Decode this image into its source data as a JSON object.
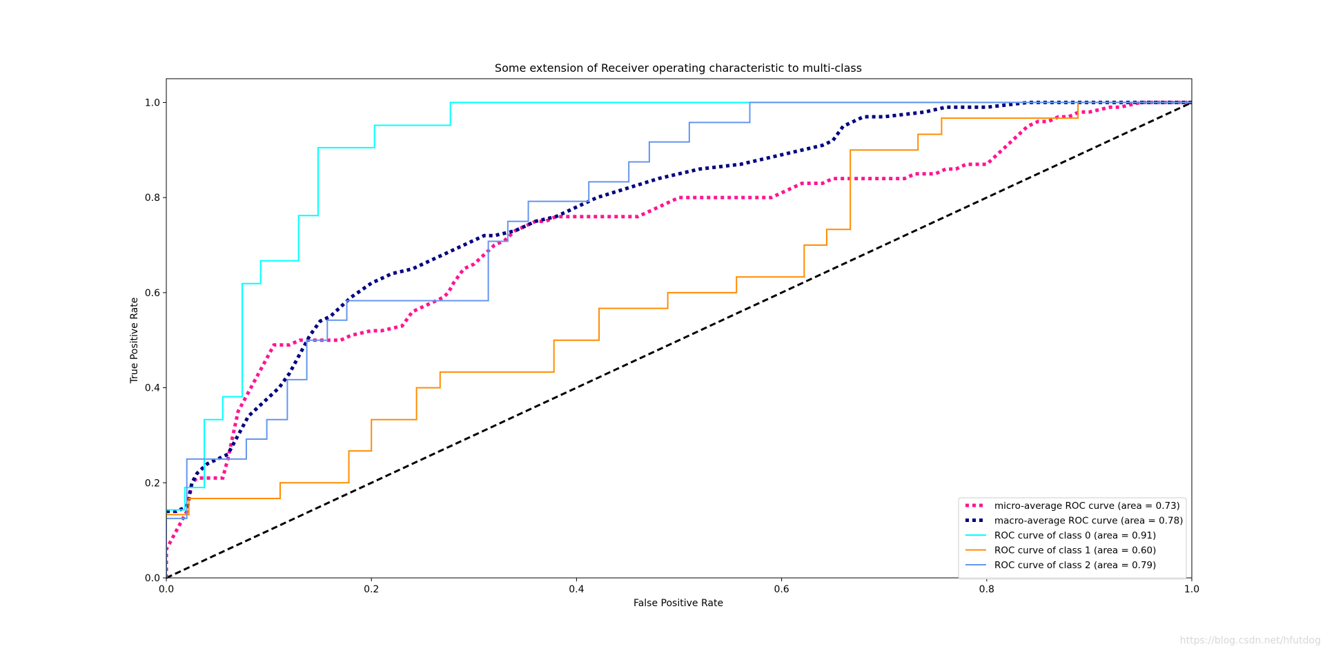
{
  "chart_data": {
    "type": "line",
    "title": "Some extension of Receiver operating characteristic to multi-class",
    "xlabel": "False Positive Rate",
    "ylabel": "True Positive Rate",
    "xlim": [
      0.0,
      1.0
    ],
    "ylim": [
      0.0,
      1.05
    ],
    "xticks": [
      0.0,
      0.2,
      0.4,
      0.6,
      0.8,
      1.0
    ],
    "xtick_labels": [
      "0.0",
      "0.2",
      "0.4",
      "0.6",
      "0.8",
      "1.0"
    ],
    "yticks": [
      0.0,
      0.2,
      0.4,
      0.6,
      0.8,
      1.0
    ],
    "ytick_labels": [
      "0.0",
      "0.2",
      "0.4",
      "0.6",
      "0.8",
      "1.0"
    ],
    "grid": false,
    "legend_position": "lower-right",
    "series": [
      {
        "name": "micro-average ROC curve (area = 0.73)",
        "color": "#ff1493",
        "style": "dotted-thick",
        "step": false,
        "x": [
          0.0,
          0.0,
          0.005,
          0.01,
          0.015,
          0.02,
          0.025,
          0.03,
          0.04,
          0.045,
          0.055,
          0.06,
          0.065,
          0.07,
          0.075,
          0.08,
          0.085,
          0.09,
          0.095,
          0.1,
          0.105,
          0.11,
          0.115,
          0.12,
          0.13,
          0.15,
          0.17,
          0.18,
          0.2,
          0.21,
          0.23,
          0.24,
          0.25,
          0.26,
          0.27,
          0.275,
          0.28,
          0.29,
          0.3,
          0.31,
          0.32,
          0.33,
          0.34,
          0.35,
          0.36,
          0.37,
          0.38,
          0.39,
          0.4,
          0.45,
          0.46,
          0.48,
          0.49,
          0.5,
          0.55,
          0.58,
          0.59,
          0.6,
          0.62,
          0.64,
          0.65,
          0.7,
          0.72,
          0.73,
          0.75,
          0.76,
          0.77,
          0.78,
          0.79,
          0.8,
          0.81,
          0.82,
          0.83,
          0.84,
          0.85,
          0.86,
          0.87,
          0.88,
          0.89,
          0.9,
          0.92,
          0.93,
          0.95,
          0.97,
          1.0
        ],
        "y": [
          0.0,
          0.06,
          0.08,
          0.1,
          0.12,
          0.14,
          0.2,
          0.21,
          0.21,
          0.21,
          0.21,
          0.25,
          0.3,
          0.35,
          0.37,
          0.39,
          0.41,
          0.43,
          0.45,
          0.47,
          0.49,
          0.49,
          0.49,
          0.49,
          0.5,
          0.5,
          0.5,
          0.51,
          0.52,
          0.52,
          0.53,
          0.56,
          0.57,
          0.58,
          0.59,
          0.6,
          0.62,
          0.65,
          0.66,
          0.68,
          0.7,
          0.71,
          0.73,
          0.74,
          0.75,
          0.75,
          0.76,
          0.76,
          0.76,
          0.76,
          0.76,
          0.78,
          0.79,
          0.8,
          0.8,
          0.8,
          0.8,
          0.81,
          0.83,
          0.83,
          0.84,
          0.84,
          0.84,
          0.85,
          0.85,
          0.86,
          0.86,
          0.87,
          0.87,
          0.87,
          0.89,
          0.91,
          0.93,
          0.95,
          0.96,
          0.96,
          0.97,
          0.97,
          0.98,
          0.98,
          0.99,
          0.99,
          1.0,
          1.0,
          1.0
        ]
      },
      {
        "name": "macro-average ROC curve (area = 0.78)",
        "color": "#000080",
        "style": "dotted-thick",
        "step": false,
        "x": [
          0.0,
          0.01,
          0.02,
          0.025,
          0.03,
          0.04,
          0.05,
          0.06,
          0.065,
          0.07,
          0.08,
          0.09,
          0.1,
          0.11,
          0.12,
          0.13,
          0.14,
          0.15,
          0.16,
          0.17,
          0.18,
          0.2,
          0.22,
          0.24,
          0.26,
          0.28,
          0.3,
          0.31,
          0.32,
          0.34,
          0.36,
          0.38,
          0.4,
          0.42,
          0.45,
          0.48,
          0.5,
          0.52,
          0.56,
          0.58,
          0.6,
          0.62,
          0.64,
          0.65,
          0.66,
          0.67,
          0.68,
          0.7,
          0.74,
          0.76,
          0.78,
          0.8,
          0.84,
          0.88,
          0.9,
          0.95,
          1.0
        ],
        "y": [
          0.14,
          0.14,
          0.15,
          0.2,
          0.22,
          0.24,
          0.25,
          0.26,
          0.28,
          0.3,
          0.34,
          0.36,
          0.38,
          0.4,
          0.43,
          0.47,
          0.51,
          0.54,
          0.55,
          0.57,
          0.59,
          0.62,
          0.64,
          0.65,
          0.67,
          0.69,
          0.71,
          0.72,
          0.72,
          0.73,
          0.75,
          0.76,
          0.78,
          0.8,
          0.82,
          0.84,
          0.85,
          0.86,
          0.87,
          0.88,
          0.89,
          0.9,
          0.91,
          0.92,
          0.95,
          0.96,
          0.97,
          0.97,
          0.98,
          0.99,
          0.99,
          0.99,
          1.0,
          1.0,
          1.0,
          1.0,
          1.0
        ]
      },
      {
        "name": "ROC curve of class 0 (area = 0.91)",
        "color": "#00ffff",
        "style": "solid",
        "step": true,
        "x": [
          0.0,
          0.0,
          0.018,
          0.018,
          0.037,
          0.037,
          0.055,
          0.055,
          0.074,
          0.074,
          0.092,
          0.092,
          0.129,
          0.129,
          0.148,
          0.148,
          0.203,
          0.203,
          0.277,
          0.277,
          1.0
        ],
        "y": [
          0.0,
          0.143,
          0.143,
          0.19,
          0.19,
          0.333,
          0.333,
          0.381,
          0.381,
          0.619,
          0.619,
          0.667,
          0.667,
          0.762,
          0.762,
          0.905,
          0.905,
          0.952,
          0.952,
          1.0,
          1.0
        ]
      },
      {
        "name": "ROC curve of class 1 (area = 0.60)",
        "color": "#ff8c00",
        "style": "solid",
        "step": true,
        "x": [
          0.0,
          0.0,
          0.018,
          0.018,
          0.022,
          0.022,
          0.111,
          0.111,
          0.178,
          0.178,
          0.2,
          0.2,
          0.244,
          0.244,
          0.267,
          0.267,
          0.378,
          0.378,
          0.422,
          0.422,
          0.489,
          0.489,
          0.556,
          0.556,
          0.622,
          0.622,
          0.644,
          0.644,
          0.667,
          0.667,
          0.733,
          0.733,
          0.756,
          0.756,
          0.889,
          0.889,
          1.0
        ],
        "y": [
          0.0,
          0.133,
          0.133,
          0.133,
          0.133,
          0.167,
          0.167,
          0.2,
          0.2,
          0.267,
          0.267,
          0.333,
          0.333,
          0.4,
          0.4,
          0.433,
          0.433,
          0.5,
          0.5,
          0.567,
          0.567,
          0.6,
          0.6,
          0.633,
          0.633,
          0.7,
          0.7,
          0.733,
          0.733,
          0.9,
          0.9,
          0.933,
          0.933,
          0.967,
          0.967,
          1.0,
          1.0
        ]
      },
      {
        "name": "ROC curve of class 2 (area = 0.79)",
        "color": "#6495ed",
        "style": "solid",
        "step": true,
        "x": [
          0.0,
          0.0,
          0.02,
          0.02,
          0.078,
          0.078,
          0.098,
          0.098,
          0.118,
          0.118,
          0.137,
          0.137,
          0.157,
          0.157,
          0.176,
          0.176,
          0.314,
          0.314,
          0.333,
          0.333,
          0.353,
          0.353,
          0.412,
          0.412,
          0.451,
          0.451,
          0.471,
          0.471,
          0.51,
          0.51,
          0.569,
          0.569,
          1.0
        ],
        "y": [
          0.0,
          0.125,
          0.125,
          0.25,
          0.25,
          0.292,
          0.292,
          0.333,
          0.333,
          0.417,
          0.417,
          0.5,
          0.5,
          0.542,
          0.542,
          0.583,
          0.583,
          0.708,
          0.708,
          0.75,
          0.75,
          0.792,
          0.792,
          0.833,
          0.833,
          0.875,
          0.875,
          0.917,
          0.917,
          0.958,
          0.958,
          1.0,
          1.0
        ]
      },
      {
        "name": "",
        "color": "#000000",
        "style": "dashed",
        "step": false,
        "x": [
          0.0,
          1.0
        ],
        "y": [
          0.0,
          1.0
        ]
      }
    ]
  },
  "watermark": "https://blog.csdn.net/hfutdog"
}
